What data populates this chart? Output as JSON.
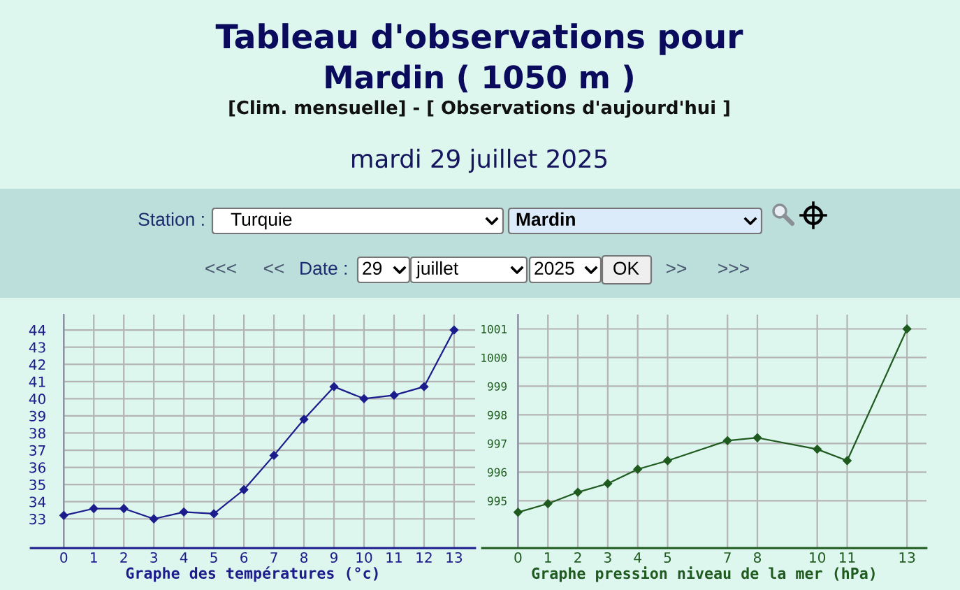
{
  "chart_data": [
    {
      "type": "other",
      "title": "Tableau d'observations pour",
      "subtitle": "Mardin ( 1050 m )",
      "annotations": [
        "[Clim. mensuelle] - [ Observations d'aujourd'hui ]",
        "mardi 29 juillet 2025",
        "Station :",
        "Turquie",
        "Mardin",
        "<<<",
        "<<",
        "Date :",
        "29",
        "juillet",
        "2025",
        "OK",
        ">>",
        ">>>"
      ]
    },
    {
      "type": "line",
      "x": [
        0,
        1,
        2,
        3,
        4,
        5,
        6,
        7,
        8,
        9,
        10,
        11,
        12,
        13
      ],
      "values": [
        33.2,
        33.6,
        33.6,
        33.0,
        33.4,
        33.3,
        34.7,
        36.7,
        38.8,
        40.7,
        40.0,
        40.2,
        40.7,
        44.0
      ],
      "color": "#1c1c8c",
      "marker": "diamond",
      "line_style": "solid",
      "xlabel": "Graphe des températures (°c)",
      "xlim": [
        -1.1,
        13.7
      ],
      "ylim": [
        31.3,
        44.9
      ],
      "xticks": [
        0,
        1,
        2,
        3,
        4,
        5,
        6,
        7,
        8,
        9,
        10,
        11,
        12,
        13
      ],
      "yticks": [
        33,
        34,
        35,
        36,
        37,
        38,
        39,
        40,
        41,
        42,
        43,
        44
      ],
      "grid": true
    },
    {
      "type": "line",
      "x": [
        0,
        1,
        2,
        3,
        4,
        5,
        7,
        8,
        10,
        11,
        13
      ],
      "values": [
        994.6,
        994.9,
        995.3,
        995.6,
        996.1,
        996.4,
        997.1,
        997.2,
        996.8,
        996.4,
        1001.0
      ],
      "color": "#1f5a1f",
      "marker": "diamond",
      "line_style": "solid",
      "xlabel": "Graphe pression niveau de la mer (hPa)",
      "xlim": [
        -1.2,
        13.65
      ],
      "ylim": [
        993.35,
        1001.5
      ],
      "xticks": [
        0,
        1,
        2,
        3,
        4,
        5,
        7,
        8,
        10,
        11,
        13
      ],
      "yticks": [
        995,
        996,
        997,
        998,
        999,
        1000,
        1001
      ],
      "grid": true
    }
  ]
}
